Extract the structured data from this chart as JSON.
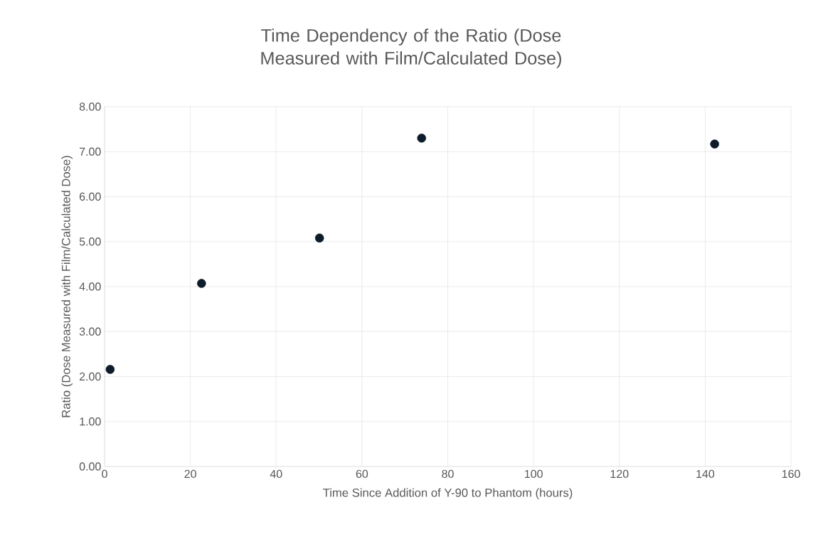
{
  "chart_data": {
    "type": "scatter",
    "title": "Time Dependency of the Ratio (Dose Measured with Film/Calculated Dose)",
    "xlabel": "Time Since Addition of Y-90 to Phantom (hours)",
    "ylabel": "Ratio (Dose Measured with Film/Calculated Dose)",
    "x": [
      1.3,
      22.6,
      50.1,
      73.9,
      142.2
    ],
    "values": [
      2.16,
      4.07,
      5.08,
      7.3,
      7.17
    ],
    "color": "#0d1b2a",
    "marker": "circle",
    "grid": true,
    "xlim": [
      0,
      160
    ],
    "xticks": [
      0,
      20,
      40,
      60,
      80,
      100,
      120,
      140,
      160
    ],
    "ylim": [
      0,
      8
    ],
    "yticks": [
      {
        "value": 0,
        "label": "0.00"
      },
      {
        "value": 1,
        "label": "1.00"
      },
      {
        "value": 2,
        "label": "2.00"
      },
      {
        "value": 3,
        "label": "3.00"
      },
      {
        "value": 4,
        "label": "4.00"
      },
      {
        "value": 5,
        "label": "5.00"
      },
      {
        "value": 6,
        "label": "6.00"
      },
      {
        "value": 7,
        "label": "7.00"
      },
      {
        "value": 8,
        "label": "8.00"
      }
    ]
  }
}
